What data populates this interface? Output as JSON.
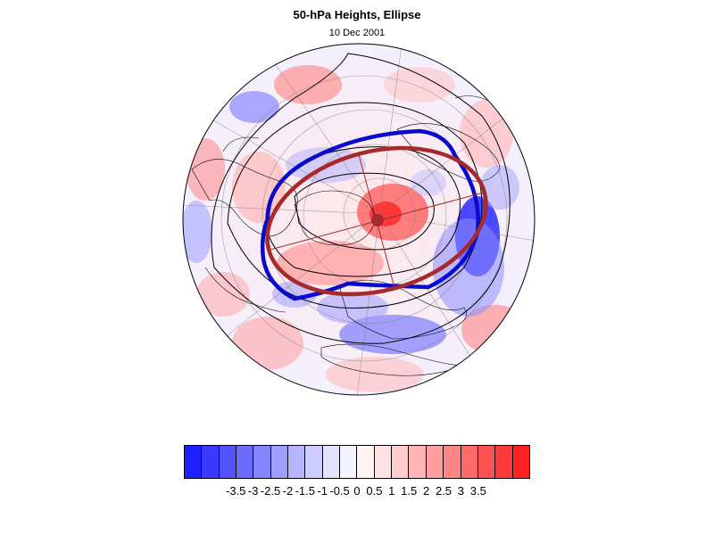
{
  "header": {
    "title": "50-hPa Heights, Ellipse",
    "date": "10 Dec 2001"
  },
  "map": {
    "projection": "north polar orthographic",
    "field": "50-hPa height anomaly",
    "contour_color": "#000000",
    "ellipse_fit_color": "#a52a2a",
    "vortex_edge_color": "#0000cc",
    "center_marker_color": "#a52a2a"
  },
  "colorbar": {
    "colors": [
      "#2020ff",
      "#3a3aff",
      "#5252ff",
      "#6b6bff",
      "#8585ff",
      "#9e9eff",
      "#b5b5ff",
      "#cdcdff",
      "#e3e3ff",
      "#f4f4ff",
      "#fff4f4",
      "#ffe3e3",
      "#ffcdcd",
      "#ffb5b5",
      "#ff9e9e",
      "#ff8585",
      "#ff6b6b",
      "#ff5252",
      "#ff3a3a",
      "#ff2020"
    ],
    "tick_labels": [
      "-3.5",
      "-3",
      "-2.5",
      "-2",
      "-1.5",
      "-1",
      "-0.5",
      "0",
      "0.5",
      "1",
      "1.5",
      "2",
      "2.5",
      "3",
      "3.5"
    ]
  }
}
